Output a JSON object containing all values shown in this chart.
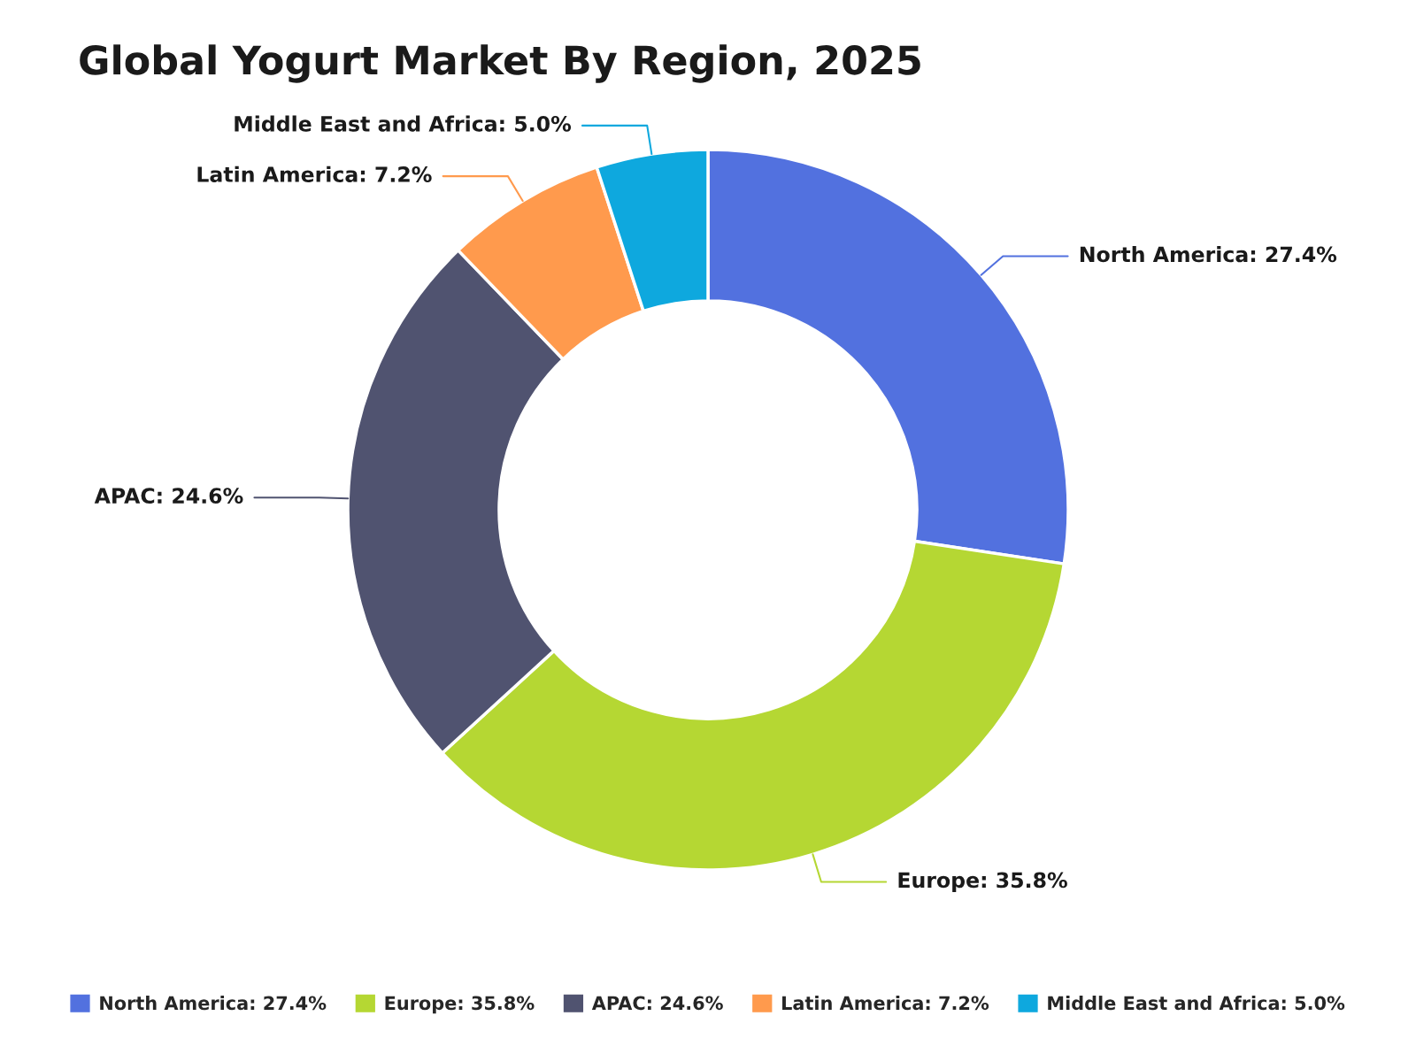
{
  "chart_data": {
    "type": "donut",
    "title": "Global Yogurt Market By Region, 2025",
    "categories": [
      "North America: 27.4%",
      "Europe: 35.8%",
      "APAC: 24.6%",
      "Latin America: 7.2%",
      "Middle East and Africa: 5.0%"
    ],
    "values": [
      27.4,
      35.8,
      24.6,
      7.2,
      5.0
    ],
    "colors": [
      "#5271df",
      "#b5d733",
      "#505370",
      "#ff9a4d",
      "#0ea8de"
    ],
    "legend": "bottom"
  }
}
